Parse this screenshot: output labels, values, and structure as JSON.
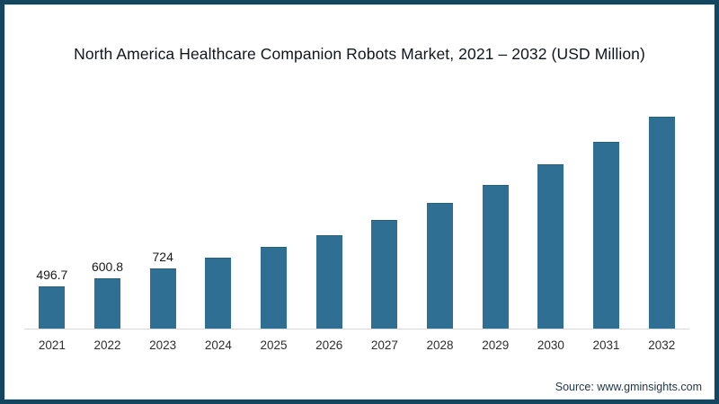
{
  "chart_data": {
    "type": "bar",
    "title": "North America Healthcare Companion Robots Market, 2021 – 2032 (USD Million)",
    "categories": [
      "2021",
      "2022",
      "2023",
      "2024",
      "2025",
      "2026",
      "2027",
      "2028",
      "2029",
      "2030",
      "2031",
      "2032"
    ],
    "values": [
      496.7,
      600.8,
      724,
      850,
      980,
      1120,
      1305,
      1510,
      1730,
      1980,
      2255,
      2560
    ],
    "data_labels": [
      "496.7",
      "600.8",
      "724",
      "",
      "",
      "",
      "",
      "",
      "",
      "",
      "",
      ""
    ],
    "xlabel": "",
    "ylabel": "",
    "ylim": [
      0,
      2700
    ],
    "grid": false,
    "legend": "none",
    "bar_color": "#2e6f93",
    "axis_line_color": "#d9d9d9"
  },
  "footer": {
    "source": "Source: www.gminsights.com"
  },
  "frame": {
    "border_color": "#15465f",
    "background_color": "#ffffff"
  }
}
